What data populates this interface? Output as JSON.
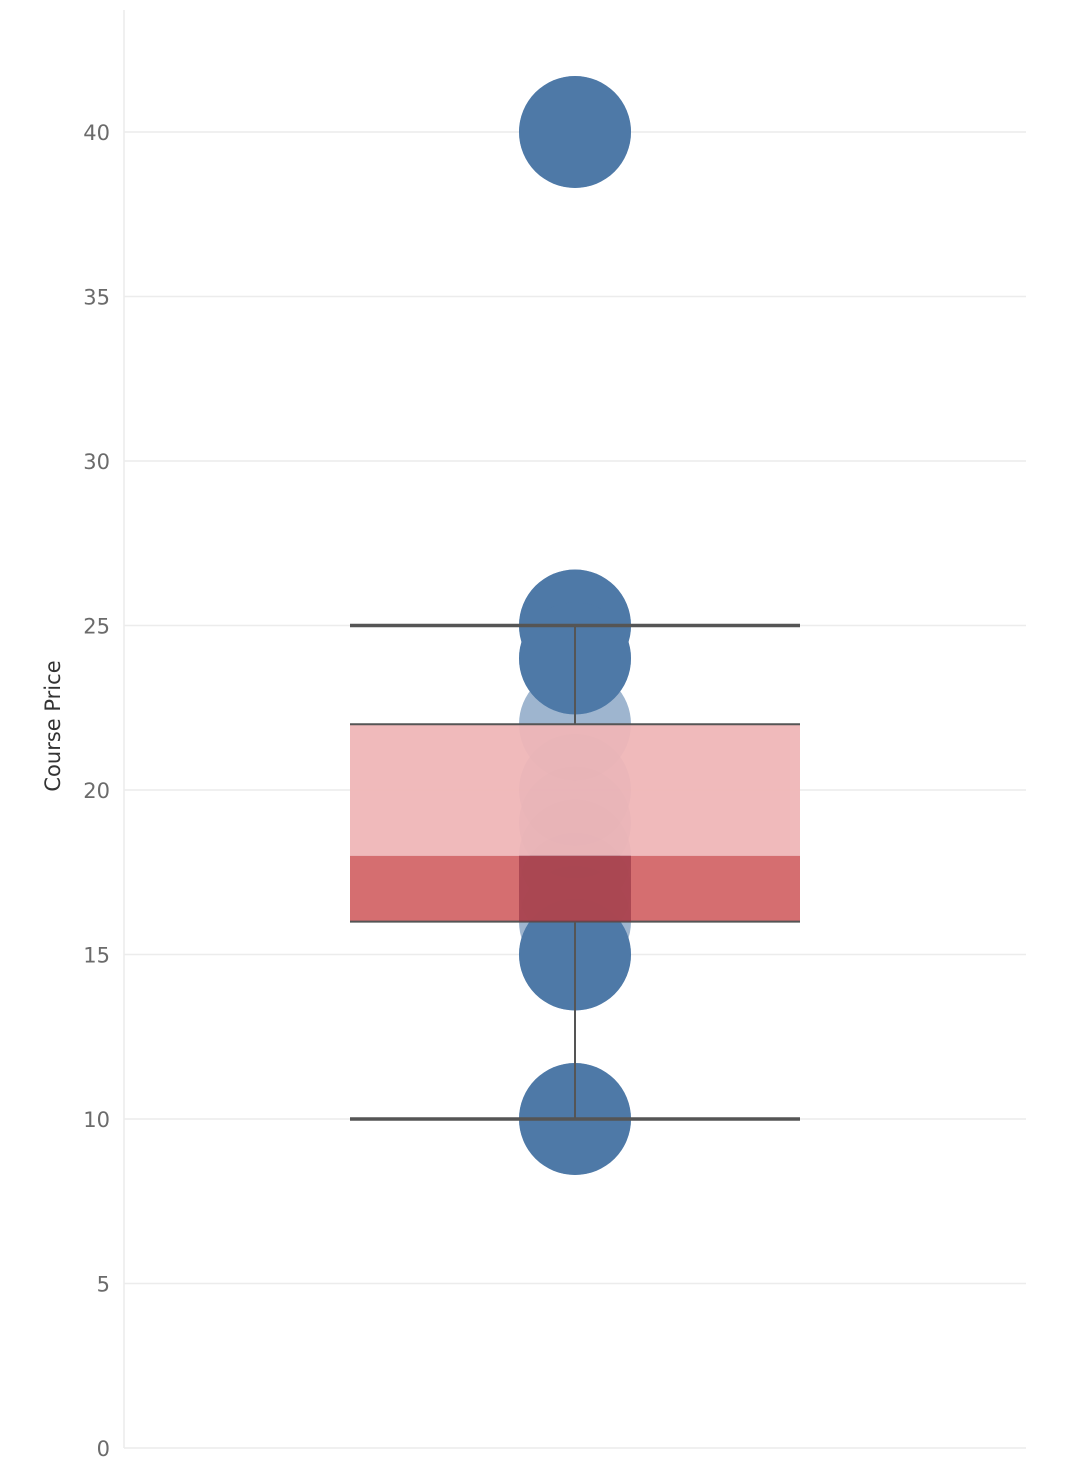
{
  "chart_data": {
    "type": "scatter",
    "ylabel": "Course Price",
    "xlabel": "",
    "ylim": [
      0,
      43
    ],
    "y_ticks": [
      0,
      5,
      10,
      15,
      20,
      25,
      30,
      35,
      40
    ],
    "grid": true,
    "points": [
      40,
      25,
      24,
      22,
      20,
      19,
      18,
      17,
      16,
      15,
      10
    ],
    "box": {
      "lower_whisker": 10,
      "q1": 16,
      "median": 18,
      "q3": 22,
      "upper_whisker": 25
    },
    "colors": {
      "point": "#4e79a7",
      "box_lower": "#d4696b",
      "box_upper": "#efb6b7",
      "whisker": "#555555",
      "grid": "#ececec",
      "tick_label": "#6b6b6b"
    }
  }
}
